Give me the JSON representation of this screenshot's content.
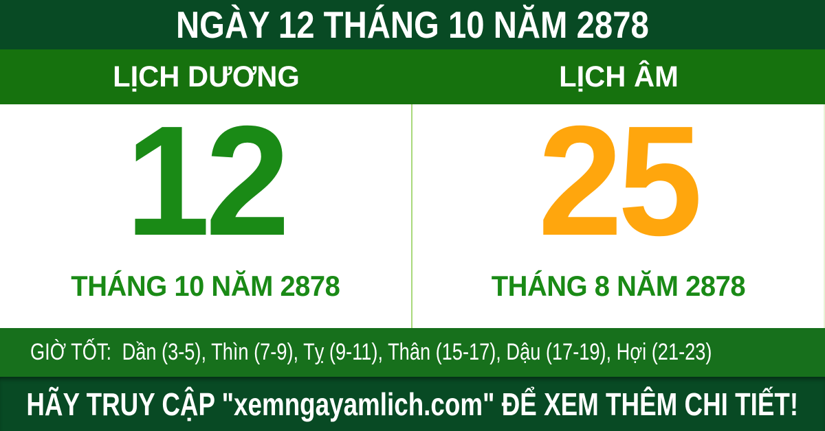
{
  "header": {
    "title": "NGÀY 12 THÁNG 10 NĂM 2878"
  },
  "calendar": {
    "solar": {
      "label": "LỊCH DƯƠNG",
      "day": "12",
      "month_year": "THÁNG 10 NĂM 2878"
    },
    "lunar": {
      "label": "LỊCH ÂM",
      "day": "25",
      "month_year": "THÁNG 8 NĂM 2878"
    }
  },
  "good_hours": {
    "label": "GIỜ TỐT:",
    "hours": [
      "Dần (3-5)",
      "Thìn (7-9)",
      "Tỵ (9-11)",
      "Thân (15-17)",
      "Dậu (17-19)",
      "Hợi (21-23)"
    ]
  },
  "footer": {
    "text": "HÃY TRUY CẬP \"xemngayamlich.com\" ĐỂ XEM THÊM CHI TIẾT!",
    "website": "xemngayamlich.com"
  },
  "colors": {
    "dark_green": "#084a24",
    "band_green": "#16720e",
    "hours_green": "#17701c",
    "day_green": "#1a8a16",
    "lunar_orange": "#ffa60d",
    "divider_green": "#a9d97b",
    "panel_bg": "#ffffff",
    "text_white": "#ffffff"
  }
}
